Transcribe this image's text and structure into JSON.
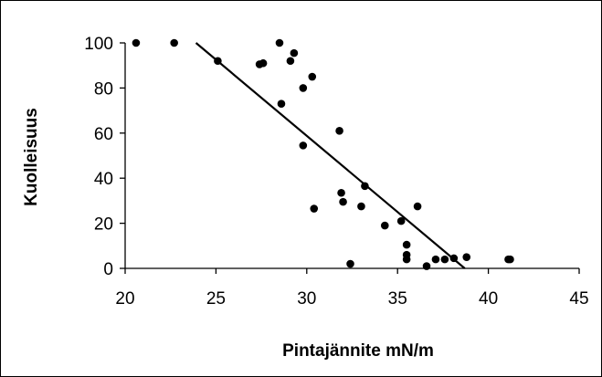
{
  "chart_data": {
    "type": "scatter",
    "title": "",
    "xlabel": "Pintajännite mN/m",
    "ylabel": "Kuolleisuus",
    "xlim": [
      20,
      45
    ],
    "ylim": [
      0,
      100
    ],
    "xticks": [
      20,
      25,
      30,
      35,
      40,
      45
    ],
    "yticks": [
      0,
      20,
      40,
      60,
      80,
      100
    ],
    "grid": false,
    "legend": "none",
    "colors": {
      "points": "#000000",
      "trendline": "#000000",
      "axes": "#000000"
    },
    "points": [
      {
        "x": 20.6,
        "y": 100
      },
      {
        "x": 22.7,
        "y": 100
      },
      {
        "x": 25.1,
        "y": 92
      },
      {
        "x": 27.4,
        "y": 90.5
      },
      {
        "x": 27.6,
        "y": 91
      },
      {
        "x": 28.5,
        "y": 100
      },
      {
        "x": 28.6,
        "y": 73
      },
      {
        "x": 29.1,
        "y": 92
      },
      {
        "x": 29.3,
        "y": 95.5
      },
      {
        "x": 29.8,
        "y": 80
      },
      {
        "x": 29.8,
        "y": 54.5
      },
      {
        "x": 30.3,
        "y": 85
      },
      {
        "x": 30.4,
        "y": 26.5
      },
      {
        "x": 31.8,
        "y": 61
      },
      {
        "x": 31.9,
        "y": 33.5
      },
      {
        "x": 32.0,
        "y": 29.5
      },
      {
        "x": 32.4,
        "y": 2
      },
      {
        "x": 33.0,
        "y": 27.5
      },
      {
        "x": 33.2,
        "y": 36.5
      },
      {
        "x": 34.3,
        "y": 19
      },
      {
        "x": 35.2,
        "y": 21
      },
      {
        "x": 35.5,
        "y": 10.5
      },
      {
        "x": 35.5,
        "y": 6
      },
      {
        "x": 35.5,
        "y": 4
      },
      {
        "x": 36.1,
        "y": 27.5
      },
      {
        "x": 36.6,
        "y": 1
      },
      {
        "x": 37.1,
        "y": 4
      },
      {
        "x": 37.6,
        "y": 4
      },
      {
        "x": 38.1,
        "y": 4.5
      },
      {
        "x": 38.8,
        "y": 5
      },
      {
        "x": 41.1,
        "y": 4
      },
      {
        "x": 41.2,
        "y": 4
      }
    ],
    "trendline": {
      "x_start": 23.9,
      "y_start": 100,
      "x_end": 38.7,
      "y_end": 0
    }
  }
}
